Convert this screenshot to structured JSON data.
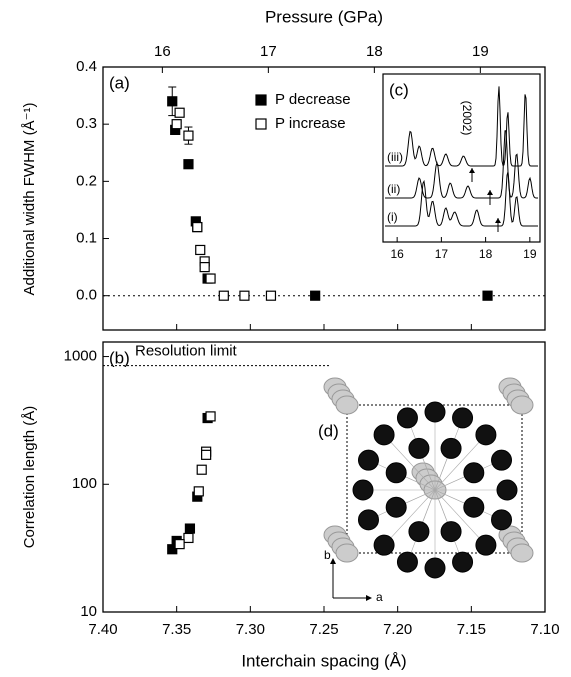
{
  "chart_data": [
    {
      "type": "scatter",
      "panel_label": "(a)",
      "y_label": "Additional width FWHM (Å⁻¹)",
      "x2_label": "Pressure (GPa)",
      "x2lim": [
        15.44,
        19.61
      ],
      "x2ticks": [
        16,
        17,
        18,
        19
      ],
      "xlim": [
        7.4,
        7.1
      ],
      "ylim": [
        -0.06,
        0.4
      ],
      "yticks": [
        {
          "value": 0,
          "label": "0.0"
        },
        0.1,
        0.2,
        0.3,
        0.4
      ],
      "reference_line": 0,
      "series": [
        {
          "name": "P decrease",
          "color": "#000000",
          "marker": "filled",
          "x": [
            7.353,
            7.351,
            7.342,
            7.337,
            7.336,
            7.329,
            7.256,
            7.139
          ],
          "values": [
            0.34,
            0.29,
            0.23,
            0.13,
            0.12,
            0.03,
            0,
            0
          ],
          "errors": [
            0.025,
            null,
            null,
            null,
            null,
            null,
            null,
            null
          ]
        },
        {
          "name": "P increase",
          "color": "#000000",
          "marker": "open",
          "x": [
            7.348,
            7.35,
            7.342,
            7.336,
            7.334,
            7.331,
            7.331,
            7.327,
            7.318,
            7.304,
            7.286
          ],
          "values": [
            0.32,
            0.3,
            0.28,
            0.12,
            0.08,
            0.06,
            0.05,
            0.03,
            0,
            0,
            0
          ],
          "errors": [
            null,
            null,
            0.015,
            null,
            null,
            null,
            null,
            null,
            null,
            null,
            null
          ]
        }
      ],
      "inset": {
        "label": "(c)",
        "xlim": [
          15.68,
          19.23
        ],
        "xticks": [
          16,
          17,
          18,
          19
        ],
        "annotation": "(2002)",
        "trace_labels": [
          "(i)",
          "(ii)",
          "(iii)"
        ]
      }
    },
    {
      "type": "scatter",
      "panel_label": "(b)",
      "log_y": true,
      "y_label": "Correlation length (Å)",
      "x_label": "Interchain spacing (Å)",
      "xlim": [
        7.4,
        7.1
      ],
      "xticks": [
        {
          "value": 7.4,
          "label": "7.40"
        },
        7.35,
        {
          "value": 7.3,
          "label": "7.30"
        },
        7.25,
        {
          "value": 7.2,
          "label": "7.20"
        },
        7.15,
        {
          "value": 7.1,
          "label": "7.10"
        }
      ],
      "ylim": [
        10,
        1300
      ],
      "yticks": [
        10,
        100,
        1000
      ],
      "resolution_limit": {
        "label": "Resolution limit",
        "value": 850
      },
      "series": [
        {
          "color": "#000000",
          "marker": "filled",
          "x": [
            7.329,
            7.336,
            7.341,
            7.35,
            7.353
          ],
          "values": [
            330,
            80,
            45,
            36,
            31
          ]
        },
        {
          "color": "#000000",
          "marker": "open",
          "x": [
            7.327,
            7.33,
            7.33,
            7.333,
            7.335,
            7.342,
            7.348
          ],
          "values": [
            340,
            180,
            170,
            130,
            88,
            38,
            34
          ]
        }
      ],
      "inset": {
        "label": "(d)",
        "axis_labels": [
          "a",
          "b"
        ]
      }
    }
  ]
}
